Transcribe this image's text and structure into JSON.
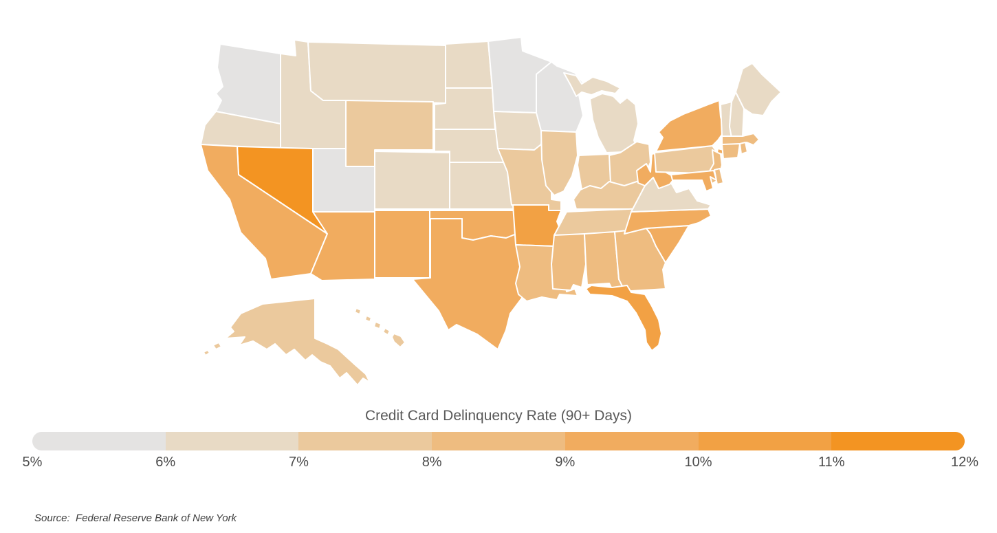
{
  "chart_data": {
    "type": "heatmap",
    "subtype": "us-state-choropleth",
    "title": "Credit Card Delinquency Rate (90+ Days)",
    "source": "Source:  Federal Reserve Bank of New York",
    "legend": {
      "position": "bottom",
      "ticks": [
        "5%",
        "6%",
        "7%",
        "8%",
        "9%",
        "10%",
        "11%",
        "12%"
      ],
      "ranges": [
        "5-6%",
        "6-7%",
        "7-8%",
        "8-9%",
        "9-10%",
        "10-11%",
        "11-12%"
      ],
      "segment_colors": [
        "#e4e3e2",
        "#e8dac5",
        "#ebc99d",
        "#eebc80",
        "#f1ac5f",
        "#f2a144",
        "#f39422"
      ]
    },
    "states": [
      {
        "abbr": "WA",
        "name": "Washington",
        "bucket": 0,
        "range": "5-6%"
      },
      {
        "abbr": "OR",
        "name": "Oregon",
        "bucket": 1,
        "range": "6-7%"
      },
      {
        "abbr": "CA",
        "name": "California",
        "bucket": 4,
        "range": "9-10%"
      },
      {
        "abbr": "NV",
        "name": "Nevada",
        "bucket": 6,
        "range": "11-12%"
      },
      {
        "abbr": "ID",
        "name": "Idaho",
        "bucket": 1,
        "range": "6-7%"
      },
      {
        "abbr": "MT",
        "name": "Montana",
        "bucket": 1,
        "range": "6-7%"
      },
      {
        "abbr": "WY",
        "name": "Wyoming",
        "bucket": 2,
        "range": "7-8%"
      },
      {
        "abbr": "UT",
        "name": "Utah",
        "bucket": 0,
        "range": "5-6%"
      },
      {
        "abbr": "CO",
        "name": "Colorado",
        "bucket": 1,
        "range": "6-7%"
      },
      {
        "abbr": "AZ",
        "name": "Arizona",
        "bucket": 4,
        "range": "9-10%"
      },
      {
        "abbr": "NM",
        "name": "New Mexico",
        "bucket": 4,
        "range": "9-10%"
      },
      {
        "abbr": "ND",
        "name": "North Dakota",
        "bucket": 1,
        "range": "6-7%"
      },
      {
        "abbr": "SD",
        "name": "South Dakota",
        "bucket": 1,
        "range": "6-7%"
      },
      {
        "abbr": "NE",
        "name": "Nebraska",
        "bucket": 1,
        "range": "6-7%"
      },
      {
        "abbr": "KS",
        "name": "Kansas",
        "bucket": 1,
        "range": "6-7%"
      },
      {
        "abbr": "OK",
        "name": "Oklahoma",
        "bucket": 4,
        "range": "9-10%"
      },
      {
        "abbr": "TX",
        "name": "Texas",
        "bucket": 4,
        "range": "9-10%"
      },
      {
        "abbr": "MN",
        "name": "Minnesota",
        "bucket": 0,
        "range": "5-6%"
      },
      {
        "abbr": "IA",
        "name": "Iowa",
        "bucket": 1,
        "range": "6-7%"
      },
      {
        "abbr": "MO",
        "name": "Missouri",
        "bucket": 2,
        "range": "7-8%"
      },
      {
        "abbr": "AR",
        "name": "Arkansas",
        "bucket": 5,
        "range": "10-11%"
      },
      {
        "abbr": "LA",
        "name": "Louisiana",
        "bucket": 3,
        "range": "8-9%"
      },
      {
        "abbr": "WI",
        "name": "Wisconsin",
        "bucket": 0,
        "range": "5-6%"
      },
      {
        "abbr": "IL",
        "name": "Illinois",
        "bucket": 2,
        "range": "7-8%"
      },
      {
        "abbr": "MI",
        "name": "Michigan",
        "bucket": 1,
        "range": "6-7%"
      },
      {
        "abbr": "IN",
        "name": "Indiana",
        "bucket": 2,
        "range": "7-8%"
      },
      {
        "abbr": "OH",
        "name": "Ohio",
        "bucket": 2,
        "range": "7-8%"
      },
      {
        "abbr": "KY",
        "name": "Kentucky",
        "bucket": 2,
        "range": "7-8%"
      },
      {
        "abbr": "TN",
        "name": "Tennessee",
        "bucket": 2,
        "range": "7-8%"
      },
      {
        "abbr": "MS",
        "name": "Mississippi",
        "bucket": 3,
        "range": "8-9%"
      },
      {
        "abbr": "AL",
        "name": "Alabama",
        "bucket": 3,
        "range": "8-9%"
      },
      {
        "abbr": "GA",
        "name": "Georgia",
        "bucket": 3,
        "range": "8-9%"
      },
      {
        "abbr": "FL",
        "name": "Florida",
        "bucket": 5,
        "range": "10-11%"
      },
      {
        "abbr": "SC",
        "name": "South Carolina",
        "bucket": 4,
        "range": "9-10%"
      },
      {
        "abbr": "NC",
        "name": "North Carolina",
        "bucket": 4,
        "range": "9-10%"
      },
      {
        "abbr": "VA",
        "name": "Virginia",
        "bucket": 1,
        "range": "6-7%"
      },
      {
        "abbr": "WV",
        "name": "West Virginia",
        "bucket": 4,
        "range": "9-10%"
      },
      {
        "abbr": "MD",
        "name": "Maryland",
        "bucket": 4,
        "range": "9-10%"
      },
      {
        "abbr": "DE",
        "name": "Delaware",
        "bucket": 3,
        "range": "8-9%"
      },
      {
        "abbr": "NJ",
        "name": "New Jersey",
        "bucket": 3,
        "range": "8-9%"
      },
      {
        "abbr": "PA",
        "name": "Pennsylvania",
        "bucket": 2,
        "range": "7-8%"
      },
      {
        "abbr": "NY",
        "name": "New York",
        "bucket": 4,
        "range": "9-10%"
      },
      {
        "abbr": "CT",
        "name": "Connecticut",
        "bucket": 3,
        "range": "8-9%"
      },
      {
        "abbr": "RI",
        "name": "Rhode Island",
        "bucket": 3,
        "range": "8-9%"
      },
      {
        "abbr": "MA",
        "name": "Massachusetts",
        "bucket": 3,
        "range": "8-9%"
      },
      {
        "abbr": "VT",
        "name": "Vermont",
        "bucket": 1,
        "range": "6-7%"
      },
      {
        "abbr": "NH",
        "name": "New Hampshire",
        "bucket": 1,
        "range": "6-7%"
      },
      {
        "abbr": "ME",
        "name": "Maine",
        "bucket": 1,
        "range": "6-7%"
      },
      {
        "abbr": "AK",
        "name": "Alaska",
        "bucket": 2,
        "range": "7-8%"
      },
      {
        "abbr": "HI",
        "name": "Hawaii",
        "bucket": 2,
        "range": "7-8%"
      }
    ]
  }
}
